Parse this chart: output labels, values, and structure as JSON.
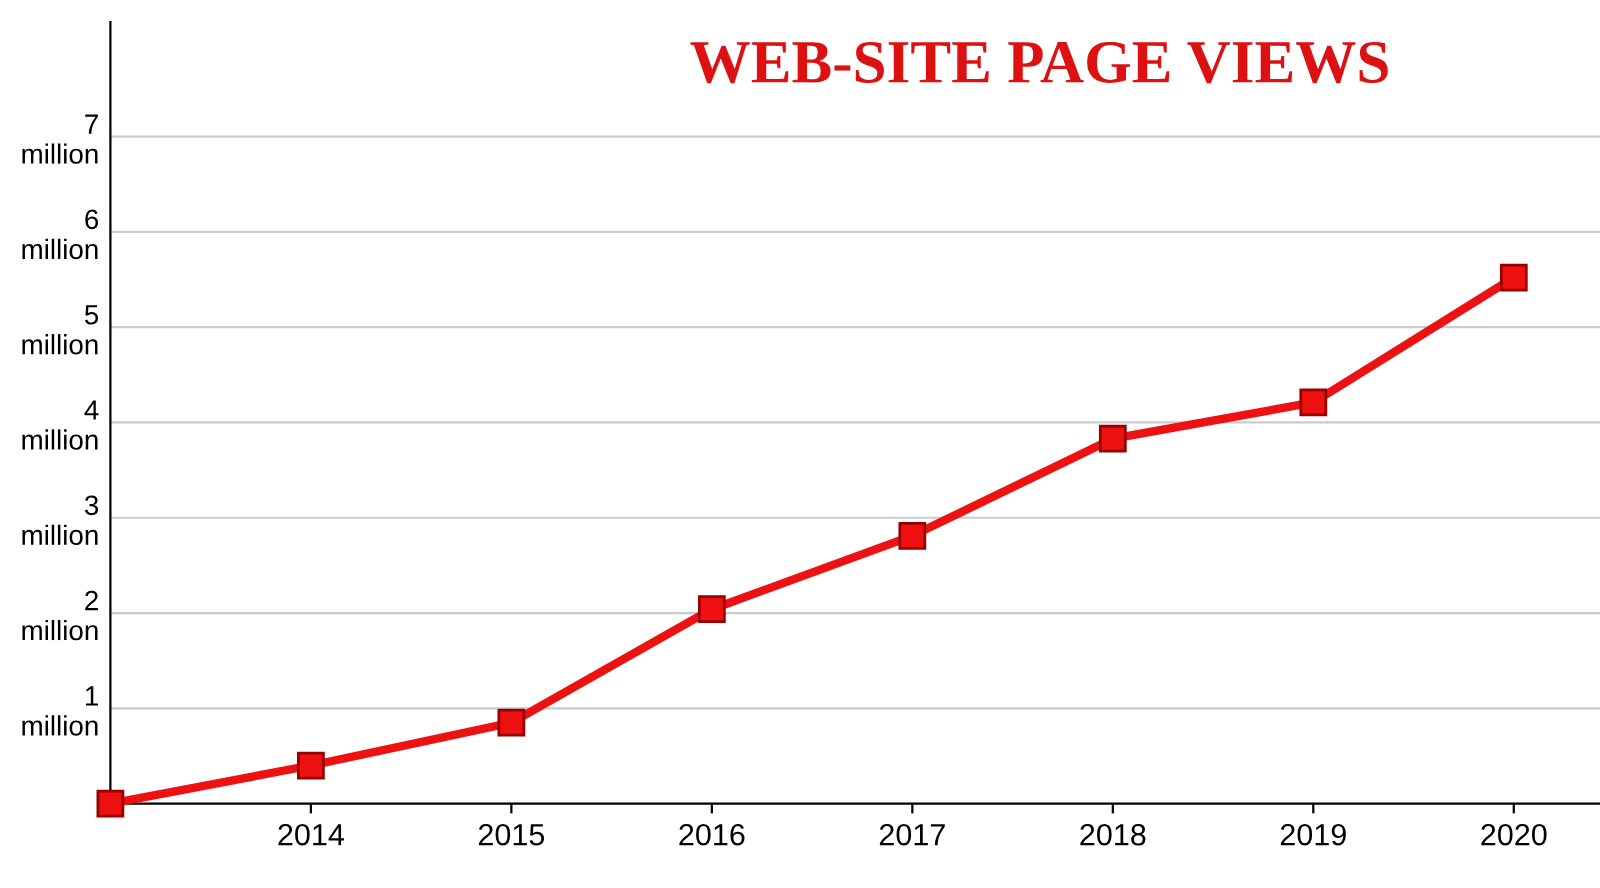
{
  "chart_data": {
    "type": "line",
    "title": "WEB-SITE PAGE VIEWS",
    "x": [
      2013,
      2014,
      2015,
      2016,
      2017,
      2018,
      2019,
      2020
    ],
    "series": [
      {
        "color": "#ee1111",
        "values": [
          0,
          400000,
          850000,
          2040000,
          2810000,
          3830000,
          4210000,
          5520000
        ]
      }
    ],
    "marker": "square",
    "line_style": "solid",
    "grid": "y",
    "legend": false,
    "xlim": [
      2013,
      2020.43
    ],
    "xticks": [
      2014,
      2015,
      2016,
      2017,
      2018,
      2019,
      2020
    ],
    "ylim": [
      0,
      8200000
    ],
    "yticks": [
      {
        "value": 1000000,
        "label": "1\nmillion"
      },
      {
        "value": 2000000,
        "label": "2\nmillion"
      },
      {
        "value": 3000000,
        "label": "3\nmillion"
      },
      {
        "value": 4000000,
        "label": "4\nmillion"
      },
      {
        "value": 5000000,
        "label": "5\nmillion"
      },
      {
        "value": 6000000,
        "label": "6\nmillion"
      },
      {
        "value": 7000000,
        "label": "7\nmillion"
      }
    ]
  }
}
